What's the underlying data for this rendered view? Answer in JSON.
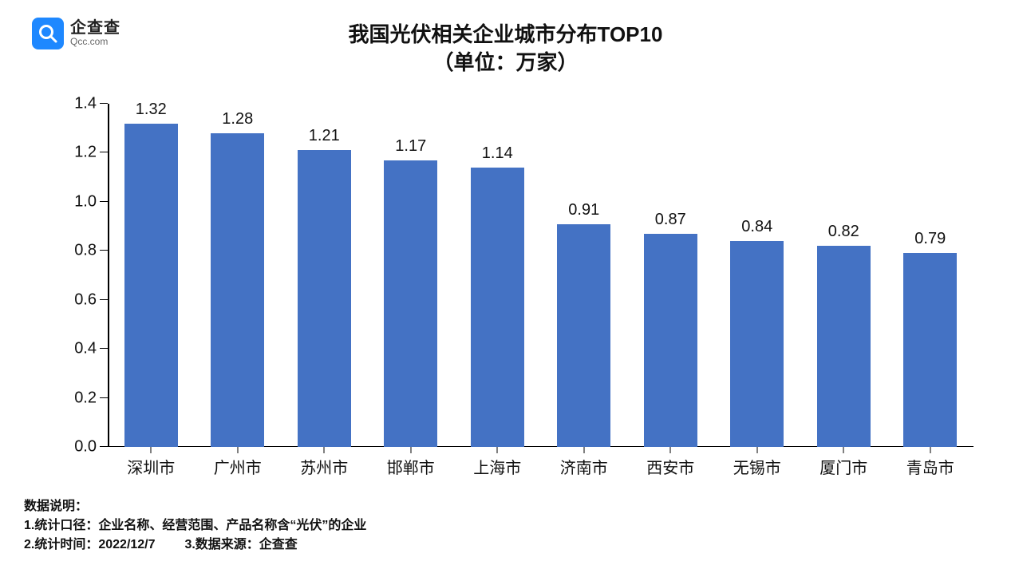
{
  "logo": {
    "brand_cn": "企查查",
    "brand_en": "Qcc.com",
    "badge_bg": "#1e88ff",
    "badge_fg": "#ffffff"
  },
  "title": {
    "line1": "我国光伏相关企业城市分布TOP10",
    "line2": "（单位：万家）",
    "fontsize": 26,
    "color": "#111111"
  },
  "chart": {
    "type": "bar",
    "categories": [
      "深圳市",
      "广州市",
      "苏州市",
      "邯郸市",
      "上海市",
      "济南市",
      "西安市",
      "无锡市",
      "厦门市",
      "青岛市"
    ],
    "values": [
      1.32,
      1.28,
      1.21,
      1.17,
      1.14,
      0.91,
      0.87,
      0.84,
      0.82,
      0.79
    ],
    "value_labels": [
      "1.32",
      "1.28",
      "1.21",
      "1.17",
      "1.14",
      "0.91",
      "0.87",
      "0.84",
      "0.82",
      "0.79"
    ],
    "bar_color": "#4472c4",
    "background_color": "#ffffff",
    "axis_color": "#000000",
    "ylim": [
      0.0,
      1.4
    ],
    "ytick_step": 0.2,
    "yticks": [
      "0.0",
      "0.2",
      "0.4",
      "0.6",
      "0.8",
      "1.0",
      "1.2",
      "1.4"
    ],
    "value_fontsize": 20,
    "axis_label_fontsize": 20,
    "bar_width_ratio": 0.62
  },
  "footer": {
    "heading": "数据说明：",
    "line1": "1.统计口径：企业名称、经营范围、产品名称含“光伏”的企业",
    "line2a": "2.统计时间：2022/12/7",
    "line2b": "3.数据来源：企查查",
    "fontsize": 16,
    "color": "#111111"
  }
}
